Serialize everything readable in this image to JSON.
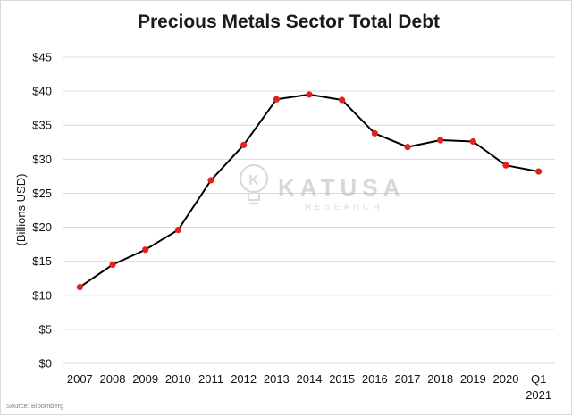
{
  "chart_data": {
    "type": "line",
    "title": "Precious Metals Sector Total Debt",
    "ylabel": "(Billions USD)",
    "xlabel": "",
    "categories": [
      "2007",
      "2008",
      "2009",
      "2010",
      "2011",
      "2012",
      "2013",
      "2014",
      "2015",
      "2016",
      "2017",
      "2018",
      "2019",
      "2020",
      "Q1\n2021"
    ],
    "values": [
      11.2,
      14.5,
      16.7,
      19.6,
      26.9,
      32.1,
      38.8,
      39.5,
      38.7,
      33.8,
      31.8,
      32.8,
      32.6,
      29.1,
      28.2
    ],
    "y_tick_labels": [
      "$0",
      "$5",
      "$10",
      "$15",
      "$20",
      "$25",
      "$30",
      "$35",
      "$40",
      "$45"
    ],
    "ylim": [
      0,
      45
    ],
    "y_tick_step": 5,
    "grid": true,
    "legend": "none",
    "colors": {
      "line": "#000000",
      "marker": "#e3231b",
      "grid": "#d9d9d9"
    }
  },
  "source": "Source: Bloomberg",
  "watermark": {
    "brand": "KATUSA",
    "sub": "RESEARCH",
    "logo_icon": "lightbulb-k-icon"
  }
}
